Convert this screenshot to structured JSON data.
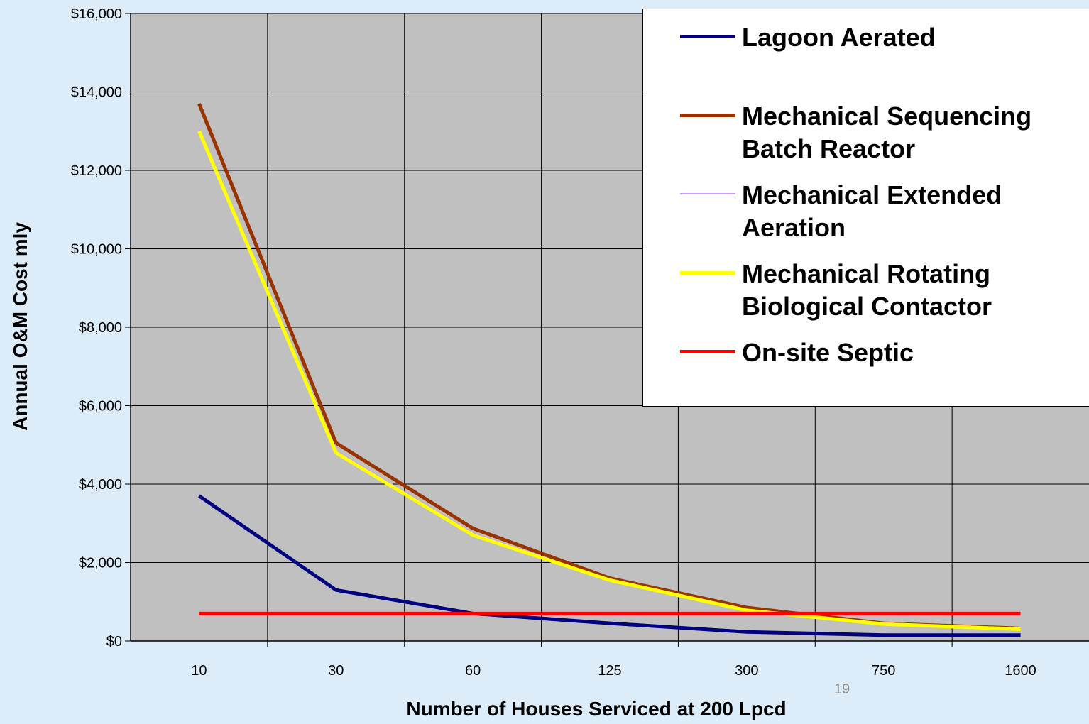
{
  "chart_data": {
    "type": "line",
    "x_label": "Number of Houses Serviced at 200 Lpcd",
    "y_label": "Annual O&M Cost mly",
    "page_number": "19",
    "categories": [
      "10",
      "30",
      "60",
      "125",
      "300",
      "750",
      "1600"
    ],
    "series": [
      {
        "name": "Lagoon Aerated",
        "color": "#000080",
        "width": 5,
        "values": [
          3700,
          1300,
          700,
          450,
          230,
          150,
          150
        ]
      },
      {
        "name": "Mechanical Sequencing Batch Reactor",
        "color": "#993300",
        "width": 5,
        "values": [
          13700,
          5050,
          2870,
          1600,
          850,
          450,
          320
        ]
      },
      {
        "name": "Mechanical Extended Aeration",
        "color": "#cc99ff",
        "width": 2,
        "values": [
          13050,
          4850,
          2750,
          1560,
          790,
          440,
          310
        ]
      },
      {
        "name": "Mechanical Rotating Biological Contactor",
        "color": "#ffff00",
        "width": 5,
        "values": [
          13000,
          4800,
          2700,
          1550,
          780,
          430,
          300
        ]
      },
      {
        "name": "On-site Septic",
        "color": "#ff0000",
        "width": 5,
        "values": [
          700,
          700,
          700,
          700,
          700,
          700,
          700
        ]
      }
    ],
    "ylim": [
      0,
      16000
    ],
    "yticks": [
      {
        "value": 0,
        "label": "$0"
      },
      {
        "value": 2000,
        "label": "$2,000"
      },
      {
        "value": 4000,
        "label": "$4,000"
      },
      {
        "value": 6000,
        "label": "$6,000"
      },
      {
        "value": 8000,
        "label": "$8,000"
      },
      {
        "value": 10000,
        "label": "$10,000"
      },
      {
        "value": 12000,
        "label": "$12,000"
      },
      {
        "value": 14000,
        "label": "$14,000"
      },
      {
        "value": 16000,
        "label": "$16,000"
      }
    ],
    "grid": true,
    "plot_background": "#c0c0c0",
    "legend": "upper right"
  }
}
